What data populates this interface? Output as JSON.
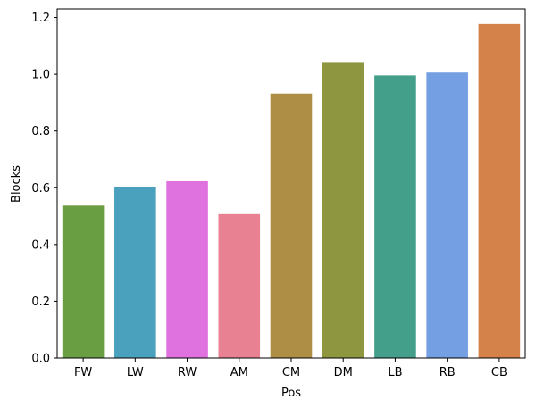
{
  "chart_data": {
    "type": "bar",
    "xlabel": "Pos",
    "ylabel": "Blocks",
    "categories": [
      "FW",
      "LW",
      "RW",
      "AM",
      "CM",
      "DM",
      "LB",
      "RB",
      "CB"
    ],
    "values": [
      0.537,
      0.604,
      0.623,
      0.507,
      0.932,
      1.04,
      0.996,
      1.006,
      1.177
    ],
    "colors": [
      "#6a9e43",
      "#4aa1be",
      "#e072e0",
      "#e88293",
      "#ae8e45",
      "#8f9640",
      "#439e8a",
      "#74a0e3",
      "#d4824a"
    ],
    "ylim": [
      0,
      1.23
    ],
    "yticks": [
      "0.0",
      "0.2",
      "0.4",
      "0.6",
      "0.8",
      "1.0",
      "1.2"
    ],
    "grid": false,
    "legend": "none"
  }
}
